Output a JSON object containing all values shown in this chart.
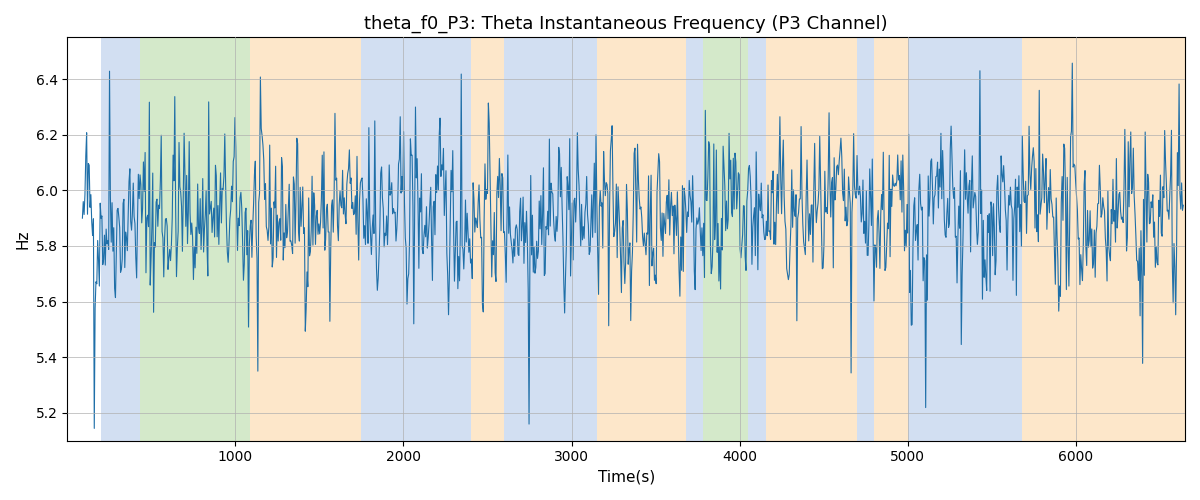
{
  "title": "theta_f0_P3: Theta Instantaneous Frequency (P3 Channel)",
  "xlabel": "Time(s)",
  "ylabel": "Hz",
  "ylim": [
    5.1,
    6.55
  ],
  "xlim": [
    0,
    6650
  ],
  "line_color": "#1f6fa8",
  "line_width": 0.8,
  "bg_color": "#ffffff",
  "grid_color": "#b0b0b0",
  "title_fontsize": 13,
  "label_fontsize": 11,
  "bands": [
    {
      "xmin": 200,
      "xmax": 430,
      "color": "#aec6e8",
      "alpha": 0.55
    },
    {
      "xmin": 430,
      "xmax": 1090,
      "color": "#b2d8a0",
      "alpha": 0.55
    },
    {
      "xmin": 1090,
      "xmax": 1750,
      "color": "#fdd5a0",
      "alpha": 0.55
    },
    {
      "xmin": 1750,
      "xmax": 2400,
      "color": "#aec6e8",
      "alpha": 0.55
    },
    {
      "xmin": 2400,
      "xmax": 2600,
      "color": "#fdd5a0",
      "alpha": 0.55
    },
    {
      "xmin": 2600,
      "xmax": 3150,
      "color": "#aec6e8",
      "alpha": 0.55
    },
    {
      "xmin": 3150,
      "xmax": 3680,
      "color": "#fdd5a0",
      "alpha": 0.55
    },
    {
      "xmin": 3680,
      "xmax": 3780,
      "color": "#aec6e8",
      "alpha": 0.55
    },
    {
      "xmin": 3780,
      "xmax": 4050,
      "color": "#b2d8a0",
      "alpha": 0.55
    },
    {
      "xmin": 4050,
      "xmax": 4160,
      "color": "#aec6e8",
      "alpha": 0.55
    },
    {
      "xmin": 4160,
      "xmax": 4700,
      "color": "#fdd5a0",
      "alpha": 0.55
    },
    {
      "xmin": 4700,
      "xmax": 4800,
      "color": "#aec6e8",
      "alpha": 0.55
    },
    {
      "xmin": 4800,
      "xmax": 5000,
      "color": "#fdd5a0",
      "alpha": 0.55
    },
    {
      "xmin": 5000,
      "xmax": 5680,
      "color": "#aec6e8",
      "alpha": 0.55
    },
    {
      "xmin": 5680,
      "xmax": 5800,
      "color": "#fdd5a0",
      "alpha": 0.55
    },
    {
      "xmin": 5800,
      "xmax": 6650,
      "color": "#fdd5a0",
      "alpha": 0.55
    }
  ],
  "seed": 42,
  "n_points": 1300,
  "t_start": 90,
  "t_end": 6640,
  "mean_freq": 5.9,
  "ar_alpha": 0.5,
  "noise_std": 0.12,
  "spike_n": 60,
  "spike_min": 0.15,
  "spike_max": 0.55
}
